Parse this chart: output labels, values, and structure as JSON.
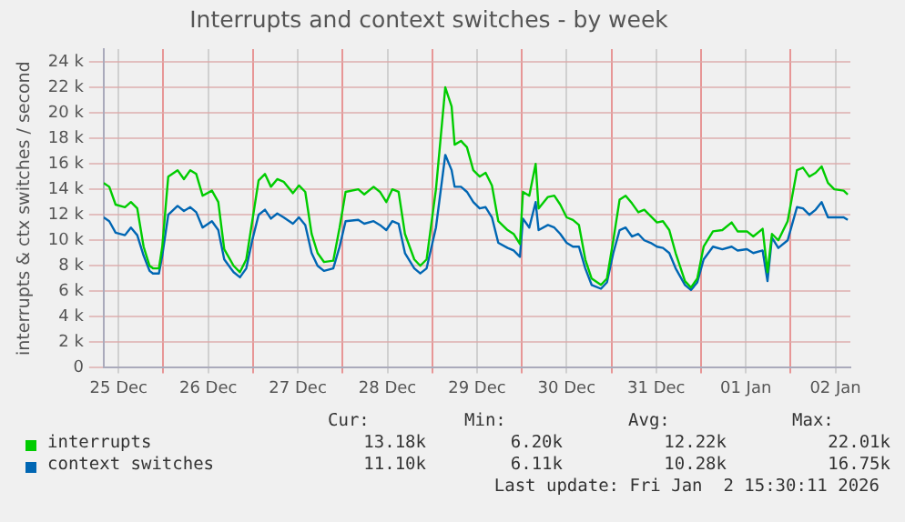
{
  "chart_data": {
    "type": "line",
    "title": "Interrupts and context switches - by week",
    "ylabel": "interrupts & ctx switches / second",
    "x": [
      "2025-12-25T08:00",
      "2025-12-25T09:30",
      "2025-12-25T11:12",
      "2025-12-25T13:42",
      "2025-12-25T15:18",
      "2025-12-25T17:00",
      "2025-12-25T18:42",
      "2025-12-25T20:18",
      "2025-12-25T21:12",
      "2025-12-25T22:48",
      "2025-12-25T23:42",
      "2025-12-26T01:18",
      "2025-12-26T03:48",
      "2025-12-26T05:30",
      "2025-12-26T07:12",
      "2025-12-26T08:48",
      "2025-12-26T10:30",
      "2025-12-26T13:00",
      "2025-12-26T14:42",
      "2025-12-26T16:18",
      "2025-12-26T18:48",
      "2025-12-26T20:30",
      "2025-12-26T22:12",
      "2025-12-26T23:48",
      "2025-12-27T01:30",
      "2025-12-27T03:12",
      "2025-12-27T04:48",
      "2025-12-27T06:30",
      "2025-12-27T08:12",
      "2025-12-27T10:42",
      "2025-12-27T12:18",
      "2025-12-27T14:00",
      "2025-12-27T15:42",
      "2025-12-27T17:18",
      "2025-12-27T19:00",
      "2025-12-27T21:30",
      "2025-12-27T23:12",
      "2025-12-28T00:48",
      "2025-12-28T04:12",
      "2025-12-28T05:48",
      "2025-12-28T08:18",
      "2025-12-28T10:00",
      "2025-12-28T11:42",
      "2025-12-28T13:18",
      "2025-12-28T15:00",
      "2025-12-28T16:42",
      "2025-12-28T19:12",
      "2025-12-28T20:48",
      "2025-12-28T22:30",
      "2025-12-29T01:00",
      "2025-12-29T03:30",
      "2025-12-29T05:12",
      "2025-12-29T06:00",
      "2025-12-29T07:42",
      "2025-12-29T09:18",
      "2025-12-29T11:00",
      "2025-12-29T12:42",
      "2025-12-29T14:18",
      "2025-12-29T16:00",
      "2025-12-29T17:42",
      "2025-12-29T20:12",
      "2025-12-29T21:48",
      "2025-12-29T23:30",
      "2025-12-30T00:18",
      "2025-12-30T02:00",
      "2025-12-30T03:42",
      "2025-12-30T04:30",
      "2025-12-30T07:00",
      "2025-12-30T08:42",
      "2025-12-30T10:18",
      "2025-12-30T12:00",
      "2025-12-30T13:42",
      "2025-12-30T15:18",
      "2025-12-30T17:00",
      "2025-12-30T18:42",
      "2025-12-30T21:12",
      "2025-12-30T22:48",
      "2025-12-31T00:30",
      "2025-12-31T02:12",
      "2025-12-31T03:48",
      "2025-12-31T05:30",
      "2025-12-31T07:12",
      "2025-12-31T08:48",
      "2025-12-31T10:30",
      "2025-12-31T12:12",
      "2025-12-31T13:48",
      "2025-12-31T15:30",
      "2025-12-31T17:12",
      "2025-12-31T19:42",
      "2025-12-31T21:18",
      "2025-12-31T23:00",
      "2026-01-01T00:42",
      "2026-01-01T03:12",
      "2026-01-01T05:42",
      "2026-01-01T08:12",
      "2026-01-01T09:48",
      "2026-01-01T12:18",
      "2026-01-01T14:00",
      "2026-01-01T16:30",
      "2026-01-01T17:48",
      "2026-01-01T19:00",
      "2026-01-01T20:42",
      "2026-01-01T23:12",
      "2026-01-02T01:42",
      "2026-01-02T03:18",
      "2026-01-02T05:00",
      "2026-01-02T06:42",
      "2026-01-02T08:18",
      "2026-01-02T10:00",
      "2026-01-02T11:42",
      "2026-01-02T14:12",
      "2026-01-02T15:18"
    ],
    "series": [
      {
        "name": "interrupts",
        "color": "#00cc00",
        "values": [
          14.5,
          14.2,
          12.8,
          12.6,
          13.0,
          12.5,
          9.5,
          8.0,
          7.8,
          7.8,
          9.5,
          15.0,
          15.5,
          14.8,
          15.5,
          15.2,
          13.5,
          13.9,
          13.0,
          9.3,
          8.0,
          7.5,
          8.5,
          11.5,
          14.7,
          15.2,
          14.2,
          14.8,
          14.6,
          13.7,
          14.3,
          13.8,
          10.5,
          9.0,
          8.3,
          8.4,
          11.0,
          13.8,
          14.0,
          13.6,
          14.2,
          13.8,
          13.0,
          14.0,
          13.8,
          10.5,
          8.5,
          8.0,
          8.5,
          14.0,
          22.0,
          20.5,
          17.5,
          17.8,
          17.3,
          15.5,
          15.0,
          15.3,
          14.3,
          11.5,
          10.8,
          10.5,
          9.7,
          13.8,
          13.5,
          16.0,
          12.5,
          13.4,
          13.5,
          12.8,
          11.8,
          11.6,
          11.2,
          8.5,
          7.0,
          6.5,
          7.0,
          10.0,
          13.2,
          13.5,
          12.9,
          12.2,
          12.4,
          11.9,
          11.4,
          11.5,
          10.8,
          9.0,
          6.8,
          6.3,
          7.0,
          9.5,
          10.7,
          10.8,
          11.4,
          10.7,
          10.7,
          10.3,
          10.9,
          7.5,
          10.5,
          10.0,
          11.5,
          15.5,
          15.7,
          15.0,
          15.3,
          15.8,
          14.5,
          14.0,
          13.9,
          13.6
        ]
      },
      {
        "name": "context switches",
        "color": "#0066b3",
        "values": [
          11.8,
          11.5,
          10.6,
          10.4,
          11.0,
          10.4,
          8.8,
          7.6,
          7.4,
          7.4,
          8.8,
          12.0,
          12.7,
          12.3,
          12.6,
          12.2,
          11.0,
          11.5,
          10.8,
          8.5,
          7.5,
          7.1,
          7.8,
          10.0,
          12.0,
          12.4,
          11.7,
          12.1,
          11.8,
          11.3,
          11.8,
          11.2,
          9.0,
          8.0,
          7.6,
          7.8,
          9.5,
          11.5,
          11.6,
          11.3,
          11.5,
          11.2,
          10.8,
          11.5,
          11.3,
          9.0,
          7.8,
          7.4,
          7.8,
          11.0,
          16.7,
          15.5,
          14.2,
          14.2,
          13.8,
          13.0,
          12.5,
          12.6,
          11.8,
          9.8,
          9.4,
          9.2,
          8.7,
          11.7,
          11.0,
          13.0,
          10.8,
          11.2,
          11.0,
          10.5,
          9.8,
          9.5,
          9.5,
          7.8,
          6.5,
          6.2,
          6.7,
          9.0,
          10.8,
          11.0,
          10.3,
          10.5,
          10.0,
          9.8,
          9.5,
          9.4,
          9.0,
          7.8,
          6.5,
          6.1,
          6.7,
          8.5,
          9.5,
          9.3,
          9.5,
          9.2,
          9.3,
          9.0,
          9.2,
          6.8,
          10.2,
          9.4,
          10.0,
          12.6,
          12.5,
          12.0,
          12.4,
          13.0,
          11.8,
          11.8,
          11.8,
          11.6
        ]
      }
    ],
    "xlim": [
      "2025-12-25T08:00",
      "2026-01-02T16:00"
    ],
    "xticks": [
      {
        "value": "2025-12-25T12:00",
        "label": "25 Dec"
      },
      {
        "value": "2025-12-26T00:00",
        "label": null
      },
      {
        "value": "2025-12-26T12:00",
        "label": "26 Dec"
      },
      {
        "value": "2025-12-27T00:00",
        "label": null
      },
      {
        "value": "2025-12-27T12:00",
        "label": "27 Dec"
      },
      {
        "value": "2025-12-28T00:00",
        "label": null
      },
      {
        "value": "2025-12-28T12:00",
        "label": "28 Dec"
      },
      {
        "value": "2025-12-29T00:00",
        "label": null
      },
      {
        "value": "2025-12-29T12:00",
        "label": "29 Dec"
      },
      {
        "value": "2025-12-30T00:00",
        "label": null
      },
      {
        "value": "2025-12-30T12:00",
        "label": "30 Dec"
      },
      {
        "value": "2025-12-31T00:00",
        "label": null
      },
      {
        "value": "2025-12-31T12:00",
        "label": "31 Dec"
      },
      {
        "value": "2026-01-01T00:00",
        "label": null
      },
      {
        "value": "2026-01-01T12:00",
        "label": "01 Jan"
      },
      {
        "value": "2026-01-02T00:00",
        "label": null
      },
      {
        "value": "2026-01-02T12:00",
        "label": "02 Jan"
      }
    ],
    "ylim": [
      0,
      25
    ],
    "yticks": [
      0,
      {
        "value": 2,
        "label": "2 k"
      },
      {
        "value": 4,
        "label": "4 k"
      },
      {
        "value": 6,
        "label": "6 k"
      },
      {
        "value": 8,
        "label": "8 k"
      },
      {
        "value": 10,
        "label": "10 k"
      },
      {
        "value": 12,
        "label": "12 k"
      },
      {
        "value": 14,
        "label": "14 k"
      },
      {
        "value": 16,
        "label": "16 k"
      },
      {
        "value": 18,
        "label": "18 k"
      },
      {
        "value": 20,
        "label": "20 k"
      },
      {
        "value": 22,
        "label": "22 k"
      },
      {
        "value": 24,
        "label": "24 k"
      }
    ],
    "grid": true,
    "legend": "bottom",
    "marker": "none",
    "line_style": "solid",
    "annotations": [
      "Cur:",
      "Min:",
      "Avg:",
      "Max:",
      "13.18k",
      "6.20k",
      "12.22k",
      "22.01k",
      "11.10k",
      "6.11k",
      "10.28k",
      "16.75k",
      "Last update: Fri Jan  2 15:30:11 2026"
    ]
  }
}
